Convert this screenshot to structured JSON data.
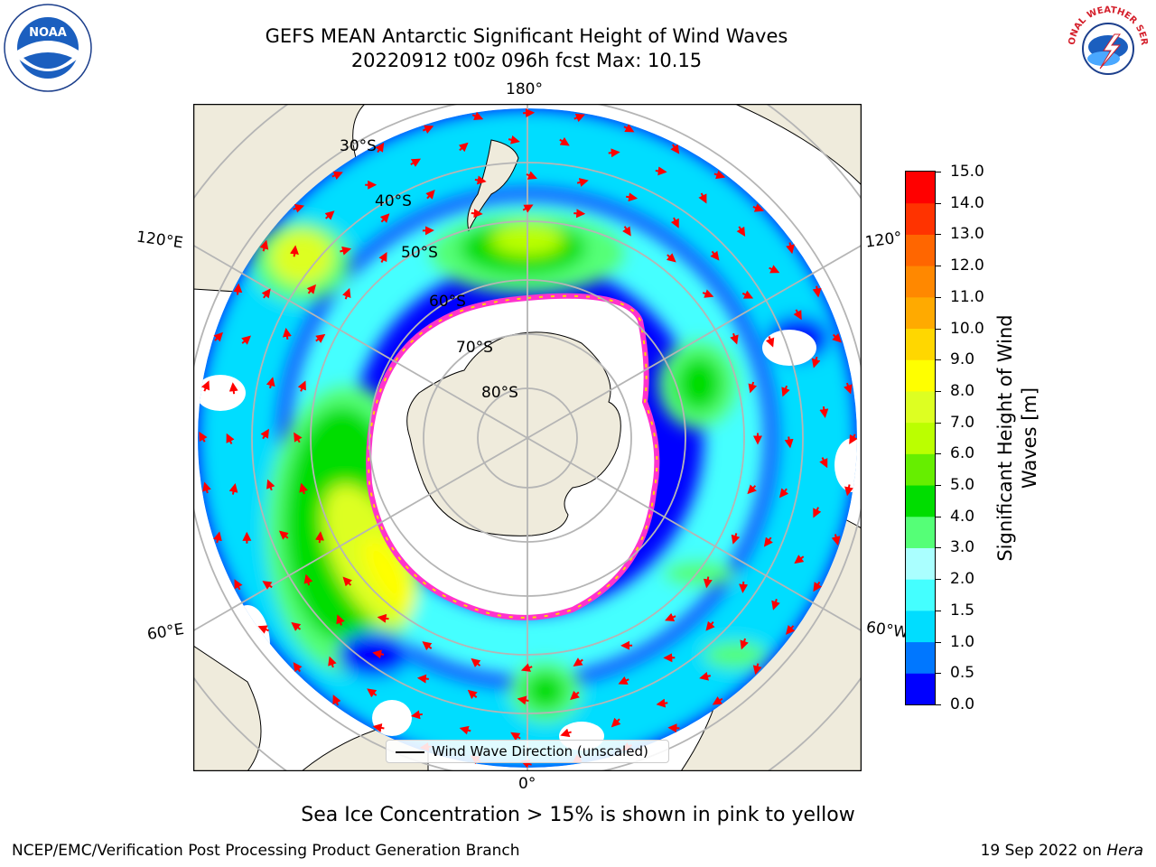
{
  "header": {
    "title_line1": "GEFS MEAN Antarctic Significant Height of Wind Waves",
    "title_line2": "20220912 t00z 096h fcst   Max: 10.15"
  },
  "map": {
    "projection": "south-polar-stereographic",
    "longitude_labels": {
      "top": "180°",
      "bottom": "0°",
      "left_upper": "120°E",
      "left_lower": "60°E",
      "right_upper": "120°",
      "right_lower": "60°W"
    },
    "latitude_labels": [
      "30°S",
      "40°S",
      "50°S",
      "60°S",
      "70°S",
      "80°S"
    ],
    "land_color": "#efebdc",
    "grid_color": "#b5b5b5",
    "arrow_color": "#ff0000",
    "sea_ice_colors": [
      "#ff33cc",
      "#ff8c00",
      "#ffd700"
    ],
    "legend_label": "Wind Wave Direction (unscaled)"
  },
  "colorbar": {
    "label": "Significant Height of Wind Waves [m]",
    "label_line1": "Significant Height of Wind",
    "label_line2": "Waves [m]",
    "ticks": [
      "0.0",
      "0.5",
      "1.0",
      "1.5",
      "2.0",
      "3.0",
      "4.0",
      "5.0",
      "6.0",
      "7.0",
      "8.0",
      "9.0",
      "10.0",
      "11.0",
      "12.0",
      "13.0",
      "14.0",
      "15.0"
    ],
    "colors": [
      "#0000ff",
      "#0077ff",
      "#00ddff",
      "#44ffff",
      "#aaffff",
      "#55ff77",
      "#00dd00",
      "#66ee00",
      "#bbff00",
      "#ddff22",
      "#ffff00",
      "#ffd700",
      "#ffaa00",
      "#ff8800",
      "#ff6600",
      "#ff3300",
      "#ff0000"
    ]
  },
  "caption": "Sea Ice Concentration > 15% is shown in pink to yellow",
  "footer": {
    "left": "NCEP/EMC/Verification Post Processing Product Generation Branch",
    "right_date": "19 Sep 2022 on ",
    "right_host": "Hera"
  },
  "logos": {
    "noaa": "NOAA",
    "nws": "NATIONAL WEATHER SERVICE"
  }
}
